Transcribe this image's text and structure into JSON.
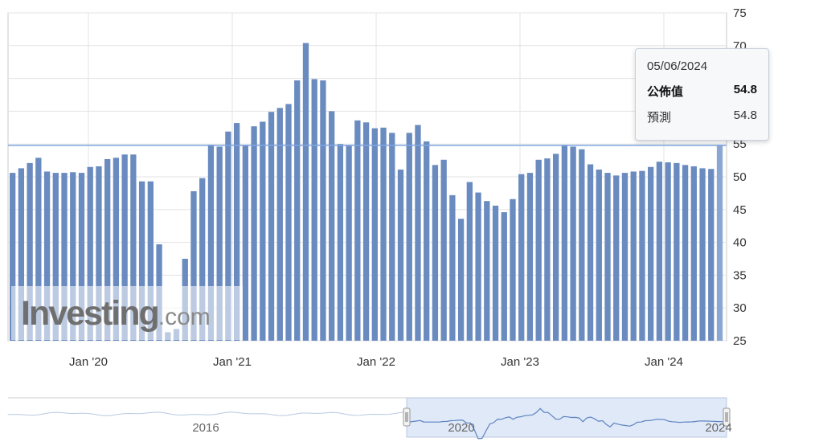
{
  "chart_data": {
    "type": "bar",
    "y_axis": {
      "ylim": [
        25,
        75
      ],
      "ticks": [
        "75",
        "70",
        "65",
        "60",
        "55",
        "50",
        "45",
        "40",
        "35",
        "30",
        "25"
      ],
      "position": "right"
    },
    "x_axis_labels": [
      "Jan '20",
      "Jan '21",
      "Jan '22",
      "Jan '23",
      "Jan '24"
    ],
    "values": [
      50.6,
      51.3,
      52.1,
      52.9,
      50.8,
      50.6,
      50.6,
      50.7,
      50.6,
      51.5,
      51.6,
      52.7,
      52.9,
      53.4,
      53.4,
      49.3,
      49.3,
      39.7,
      26.3,
      26.8,
      37.5,
      47.8,
      49.8,
      54.9,
      54.6,
      56.9,
      58.2,
      54.8,
      57.7,
      58.4,
      59.9,
      60.5,
      61.1,
      64.7,
      70.4,
      64.9,
      64.7,
      60.0,
      55.0,
      54.8,
      58.6,
      58.3,
      57.4,
      57.5,
      56.7,
      51.1,
      56.7,
      57.9,
      55.4,
      51.8,
      52.6,
      47.2,
      43.6,
      49.2,
      47.6,
      46.3,
      45.6,
      44.6,
      46.6,
      50.4,
      50.6,
      52.6,
      52.8,
      53.5,
      54.8,
      54.6,
      54.2,
      51.9,
      51.1,
      50.6,
      50.2,
      50.6,
      50.8,
      50.9,
      51.5,
      52.3,
      52.2,
      52.1,
      51.8,
      51.6,
      51.3,
      51.2,
      54.8
    ],
    "reference_line": 54.8,
    "grid": true,
    "tooltip": {
      "date": "05/06/2024",
      "actual_label": "公佈值",
      "actual_value": "54.8",
      "forecast_label": "預測",
      "forecast_value": "54.8"
    },
    "navigator": {
      "labels": [
        "2016",
        "2020",
        "2024"
      ]
    }
  },
  "watermark": {
    "brand": "Investing",
    "suffix": ".com"
  },
  "colors": {
    "bar": "#6a8bbf",
    "grid": "#e3e3e3",
    "reference_line": "#7fa6e3",
    "navigator_fill": "#dfe9f7",
    "navigator_line": "#5f83c2"
  }
}
